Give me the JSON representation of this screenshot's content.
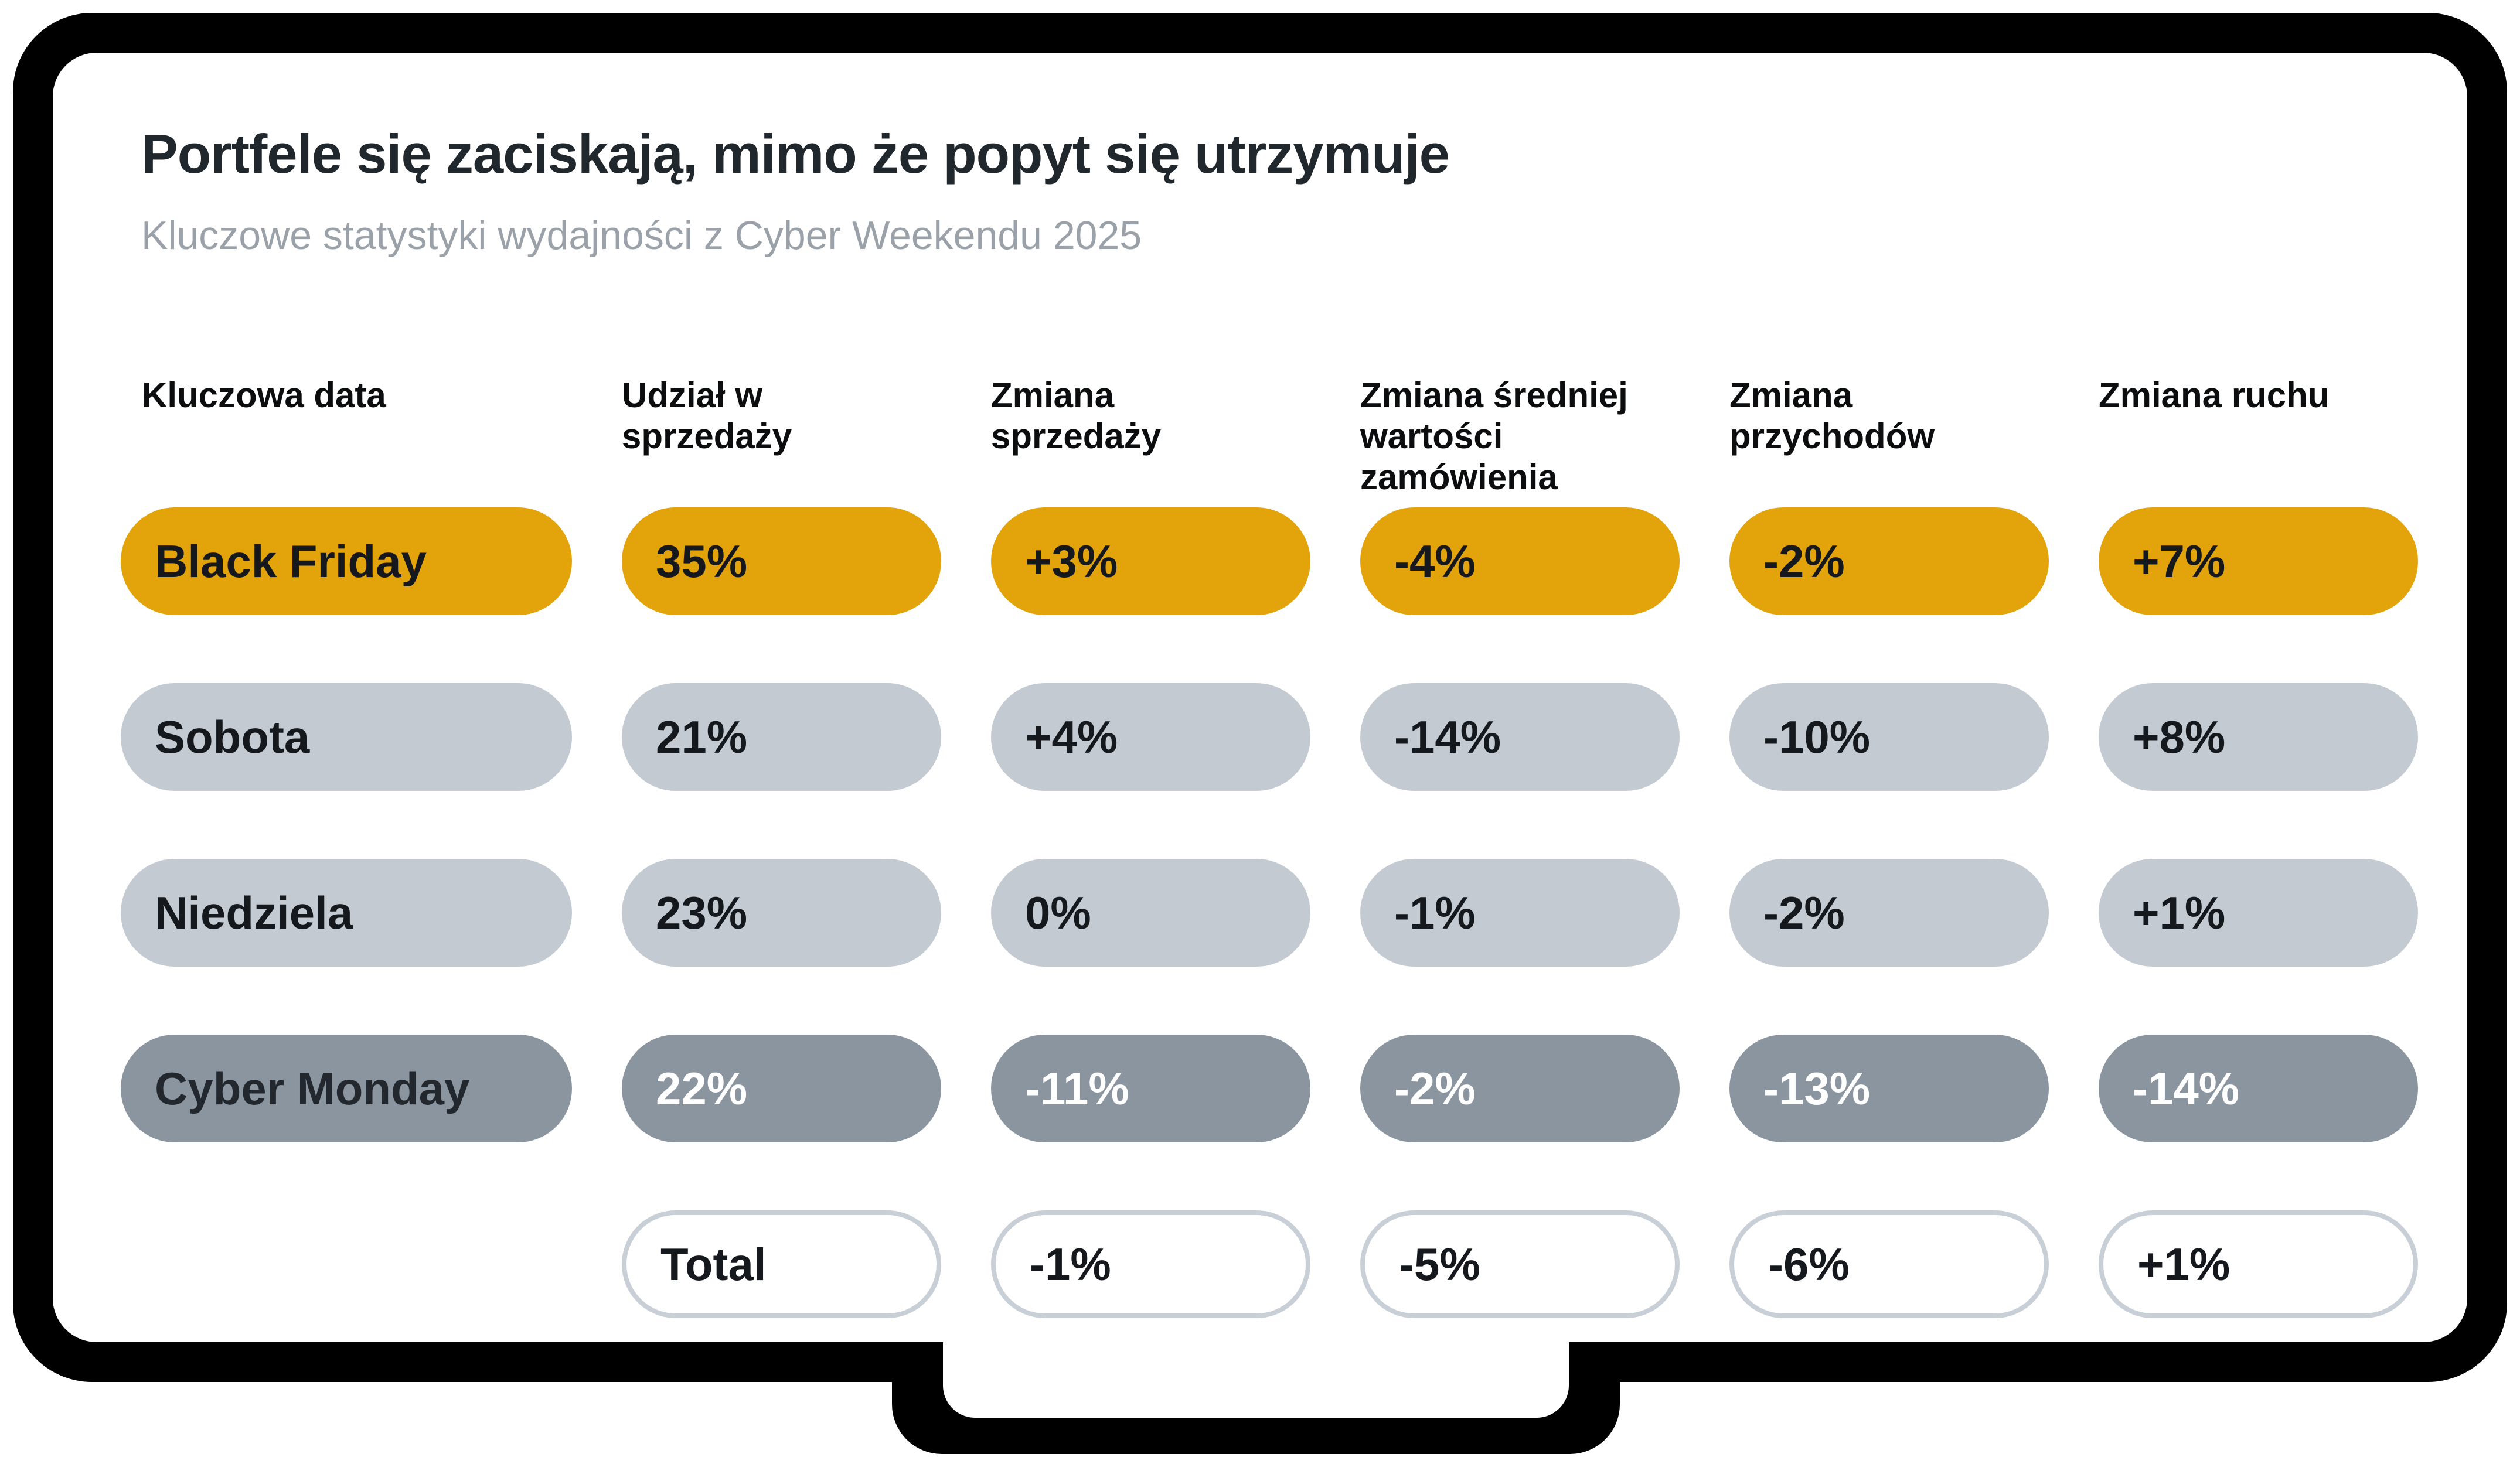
{
  "slide": {
    "title": "Portfele się zaciskają, mimo że popyt się utrzymuje",
    "subtitle": "Kluczowe statystyki wydajności z Cyber Weekendu 2025"
  },
  "table": {
    "column_headers": [
      {
        "lines": [
          "Kluczowa data"
        ]
      },
      {
        "lines": [
          "Udział w",
          "sprzedaży"
        ]
      },
      {
        "lines": [
          "Zmiana",
          "sprzedaży"
        ]
      },
      {
        "lines": [
          "Zmiana średniej",
          "wartości",
          "zamówienia"
        ]
      },
      {
        "lines": [
          "Zmiana",
          "przychodów"
        ]
      },
      {
        "lines": [
          "Zmiana ruchu"
        ]
      }
    ]
  },
  "chart_data": {
    "type": "table",
    "title": "Portfele się zaciskają, mimo że popyt się utrzymuje",
    "subtitle": "Kluczowe statystyki wydajności z Cyber Weekendu 2025",
    "columns": [
      "Kluczowa data",
      "Udział w sprzedaży",
      "Zmiana sprzedaży",
      "Zmiana średniej wartości zamówienia",
      "Zmiana przychodów",
      "Zmiana ruchu"
    ],
    "rows": [
      {
        "label": "Black Friday",
        "values": [
          "35%",
          "+3%",
          "-4%",
          "-2%",
          "+7%"
        ],
        "style": "highlight-orange"
      },
      {
        "label": "Sobota",
        "values": [
          "21%",
          "+4%",
          "-14%",
          "-10%",
          "+8%"
        ],
        "style": "light-gray"
      },
      {
        "label": "Niedziela",
        "values": [
          "23%",
          "0%",
          "-1%",
          "-2%",
          "+1%"
        ],
        "style": "light-gray"
      },
      {
        "label": "Cyber Monday",
        "values": [
          "22%",
          "-11%",
          "-2%",
          "-13%",
          "-14%"
        ],
        "style": "dark-gray"
      },
      {
        "label": "Total",
        "values": [
          "-1%",
          "-5%",
          "-6%",
          "+1%"
        ],
        "style": "total-outline",
        "note": "label pill sits in second column; first column empty"
      }
    ],
    "colors": {
      "highlight": "#e2a30b",
      "light": "#c3cad1",
      "dark": "#8a95a0",
      "total_border": "#c9cfd7",
      "title_text": "#20272d",
      "subtitle_text": "#9ba1a8",
      "frame": "#000000"
    },
    "legend_position": "none",
    "grid": false
  }
}
